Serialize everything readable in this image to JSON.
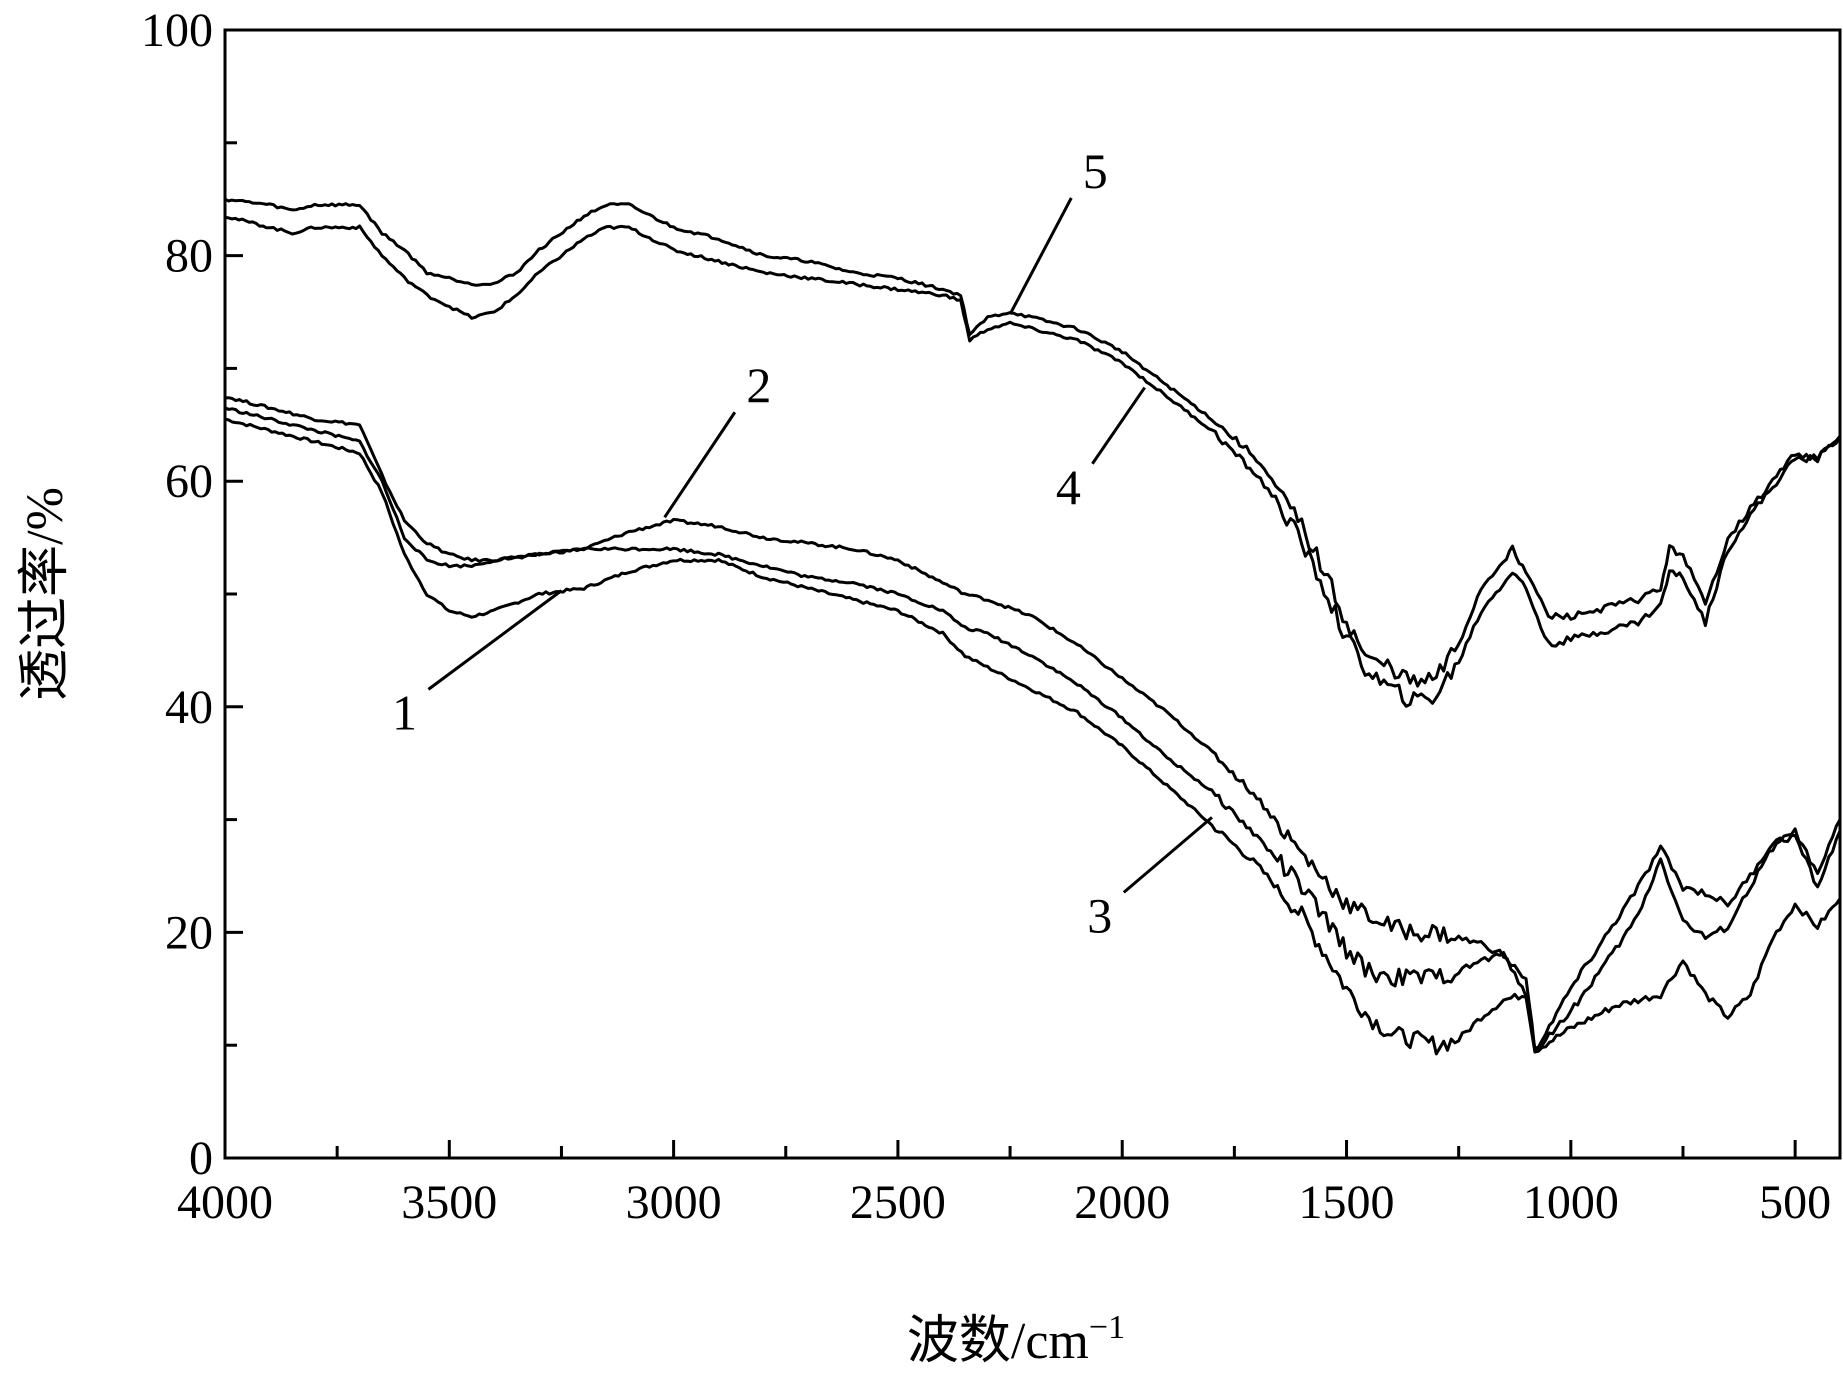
{
  "chart_data": {
    "type": "line",
    "title": "",
    "xlabel": "波数/cm",
    "xlabel_superscript": "−1",
    "ylabel": "透过率/%",
    "xlim": [
      4000,
      400
    ],
    "ylim": [
      0,
      100
    ],
    "x_ticks": [
      4000,
      3500,
      3000,
      2500,
      2000,
      1500,
      1000,
      500
    ],
    "x_tick_labels": [
      "4000",
      "3500",
      "3000",
      "2500",
      "2000",
      "1500",
      "1000",
      "500"
    ],
    "y_ticks": [
      0,
      20,
      40,
      60,
      80,
      100
    ],
    "y_tick_labels": [
      "0",
      "20",
      "40",
      "60",
      "80",
      "100"
    ],
    "legend": "none",
    "grid": false,
    "series": [
      {
        "name": "1",
        "x": [
          4000,
          3800,
          3700,
          3650,
          3600,
          3550,
          3500,
          3450,
          3400,
          3300,
          3200,
          3100,
          3000,
          2900,
          2800,
          2700,
          2600,
          2500,
          2400,
          2350,
          2300,
          2200,
          2100,
          2000,
          1900,
          1800,
          1700,
          1600,
          1500,
          1450,
          1400,
          1350,
          1300,
          1250,
          1200,
          1150,
          1100,
          1080,
          1000,
          900,
          850,
          800,
          750,
          700,
          650,
          600,
          550,
          500,
          450,
          400
        ],
        "y": [
          65.5,
          63.5,
          62.5,
          59,
          53.5,
          50,
          48.5,
          48,
          48.5,
          50,
          50.5,
          52,
          53,
          53,
          51.5,
          50.5,
          49.5,
          48.5,
          46.5,
          44.5,
          43.5,
          41.5,
          39.5,
          36.5,
          33,
          29.5,
          26,
          21.5,
          15,
          12.5,
          11,
          10.5,
          10,
          10.5,
          12.5,
          14,
          14.5,
          9.5,
          11.5,
          13.5,
          14,
          14.5,
          17.5,
          14.5,
          12.5,
          14.5,
          19.5,
          22.5,
          20.5,
          23
        ]
      },
      {
        "name": "2",
        "x": [
          4000,
          3800,
          3700,
          3650,
          3600,
          3550,
          3500,
          3450,
          3400,
          3300,
          3200,
          3100,
          3000,
          2900,
          2800,
          2700,
          2600,
          2500,
          2400,
          2350,
          2300,
          2200,
          2100,
          2000,
          1900,
          1800,
          1700,
          1600,
          1500,
          1450,
          1400,
          1350,
          1300,
          1250,
          1200,
          1150,
          1100,
          1080,
          1000,
          900,
          850,
          800,
          750,
          700,
          650,
          600,
          550,
          500,
          450,
          400
        ],
        "y": [
          67.5,
          65.5,
          65,
          60.5,
          56.5,
          54.5,
          53.5,
          53,
          53,
          53.5,
          54,
          55.5,
          56.5,
          56,
          55,
          54.5,
          54,
          53,
          51,
          50,
          49.5,
          48,
          45.5,
          42.5,
          39.5,
          36,
          32,
          27,
          22.5,
          21.5,
          20.5,
          20,
          20,
          19.5,
          19,
          18,
          14.5,
          9.5,
          15,
          21,
          24,
          27.5,
          24,
          23.5,
          22.5,
          25,
          28,
          28.5,
          24,
          29
        ]
      },
      {
        "name": "3",
        "x": [
          4000,
          3800,
          3700,
          3650,
          3600,
          3550,
          3500,
          3450,
          3400,
          3300,
          3200,
          3100,
          3000,
          2900,
          2800,
          2700,
          2600,
          2500,
          2400,
          2350,
          2300,
          2200,
          2100,
          2000,
          1900,
          1800,
          1700,
          1600,
          1500,
          1450,
          1400,
          1350,
          1300,
          1250,
          1200,
          1150,
          1100,
          1080,
          1000,
          900,
          850,
          800,
          750,
          700,
          650,
          600,
          550,
          500,
          450,
          400
        ],
        "y": [
          66.5,
          64.5,
          63.5,
          60,
          55,
          53,
          52.5,
          52.5,
          53,
          53.5,
          54,
          54,
          54,
          53.5,
          52.5,
          51.5,
          51,
          50,
          48.5,
          47,
          46.5,
          44.5,
          42,
          39,
          35.5,
          32.5,
          28.5,
          24,
          18.5,
          16.5,
          16,
          16,
          16,
          16.5,
          17.5,
          18,
          16,
          9.5,
          13,
          18.5,
          21.5,
          26.5,
          21,
          19.5,
          20.5,
          24,
          27.5,
          29,
          25,
          30
        ]
      },
      {
        "name": "4",
        "x": [
          4000,
          3900,
          3850,
          3800,
          3700,
          3650,
          3600,
          3550,
          3500,
          3450,
          3400,
          3350,
          3300,
          3200,
          3150,
          3100,
          3000,
          2900,
          2800,
          2700,
          2600,
          2500,
          2400,
          2360,
          2340,
          2300,
          2250,
          2200,
          2100,
          2000,
          1900,
          1800,
          1700,
          1650,
          1600,
          1550,
          1500,
          1450,
          1400,
          1350,
          1300,
          1250,
          1200,
          1150,
          1130,
          1100,
          1050,
          1000,
          950,
          900,
          850,
          800,
          780,
          750,
          700,
          650,
          600,
          550,
          500,
          450,
          400
        ],
        "y": [
          83.5,
          82.5,
          82,
          82.5,
          82.5,
          80,
          78,
          76.5,
          75.5,
          74.5,
          75,
          76.5,
          78.5,
          81.5,
          82.5,
          82.5,
          80.5,
          79.5,
          78.5,
          78,
          77.5,
          77,
          76.5,
          76,
          72.5,
          73.5,
          74,
          73.5,
          72.5,
          70.5,
          67.5,
          64.5,
          60.5,
          58,
          54.5,
          50.5,
          46,
          43,
          41.5,
          40.5,
          41,
          44,
          48.5,
          51,
          52,
          50.5,
          45.5,
          46,
          46.5,
          47,
          47.5,
          49,
          52,
          51.5,
          47.5,
          54,
          57,
          59.5,
          62,
          62,
          64
        ]
      },
      {
        "name": "5",
        "x": [
          4000,
          3900,
          3850,
          3800,
          3700,
          3650,
          3600,
          3550,
          3500,
          3450,
          3400,
          3350,
          3300,
          3200,
          3150,
          3100,
          3000,
          2900,
          2800,
          2700,
          2600,
          2500,
          2400,
          2360,
          2340,
          2300,
          2250,
          2200,
          2100,
          2000,
          1900,
          1800,
          1700,
          1650,
          1600,
          1550,
          1500,
          1450,
          1400,
          1350,
          1300,
          1250,
          1200,
          1150,
          1130,
          1100,
          1050,
          1000,
          950,
          900,
          850,
          800,
          780,
          750,
          700,
          650,
          600,
          550,
          500,
          450,
          400
        ],
        "y": [
          85,
          84.5,
          84,
          84.5,
          84.5,
          82,
          80.5,
          78.5,
          78,
          77.5,
          77.5,
          78.5,
          80.5,
          83.5,
          84.5,
          84.5,
          82.5,
          81.5,
          80,
          79.5,
          78.5,
          78,
          77,
          76.5,
          73,
          74.5,
          75,
          74.5,
          73.5,
          71.5,
          68.5,
          65.5,
          62,
          59,
          56,
          52,
          47.5,
          44,
          43.5,
          42,
          42.5,
          45.5,
          50.5,
          53,
          54,
          52,
          48,
          48,
          48.5,
          49,
          49.5,
          50.5,
          54,
          53.5,
          49,
          55,
          57.5,
          60,
          62.5,
          62,
          64
        ]
      }
    ],
    "annotations": [
      {
        "text": "1",
        "x": 3600,
        "y": 38
      },
      {
        "text": "2",
        "x": 2810,
        "y": 67
      },
      {
        "text": "3",
        "x": 2050,
        "y": 20
      },
      {
        "text": "4",
        "x": 2120,
        "y": 58
      },
      {
        "text": "5",
        "x": 2060,
        "y": 86
      }
    ]
  }
}
